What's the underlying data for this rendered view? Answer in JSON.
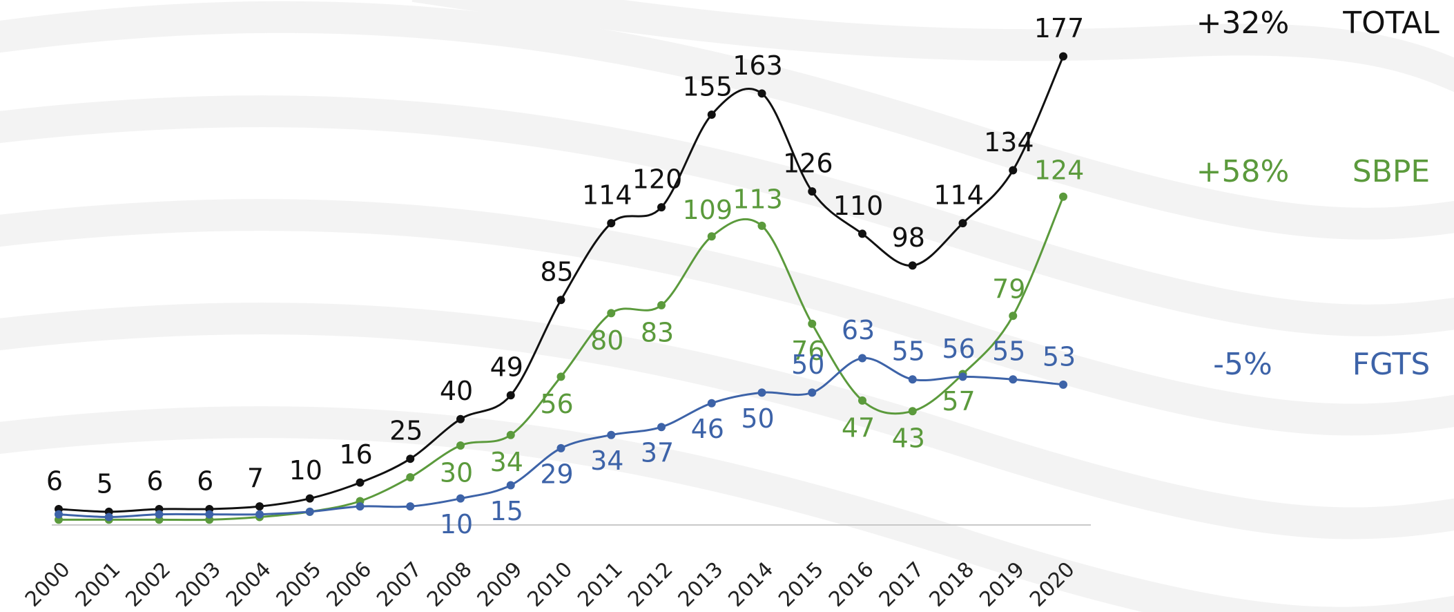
{
  "chart_data": {
    "type": "line",
    "categories": [
      "2000",
      "2001",
      "2002",
      "2003",
      "2004",
      "2005",
      "2006",
      "2007",
      "2008",
      "2009",
      "2010",
      "2011",
      "2012",
      "2013",
      "2014",
      "2015",
      "2016",
      "2017",
      "2018",
      "2019",
      "2020"
    ],
    "ylim": [
      0,
      185
    ],
    "series": [
      {
        "name": "TOTAL",
        "annotation": "+32%",
        "color": "#111111",
        "values": [
          6,
          5,
          6,
          6,
          7,
          10,
          16,
          25,
          40,
          49,
          85,
          114,
          120,
          155,
          163,
          126,
          110,
          98,
          114,
          134,
          177
        ],
        "value_labels": [
          "6",
          "5",
          "6",
          "6",
          "7",
          "10",
          "16",
          "25",
          "40",
          "49",
          "85",
          "114",
          "120",
          "155",
          "163",
          "126",
          "110",
          "98",
          "114",
          "134",
          "177"
        ]
      },
      {
        "name": "SBPE",
        "annotation": "+58%",
        "color": "#5b9a3c",
        "values": [
          2,
          2,
          2,
          2,
          3,
          5,
          9,
          18,
          30,
          34,
          56,
          80,
          83,
          109,
          113,
          76,
          47,
          43,
          57,
          79,
          124
        ],
        "value_labels": [
          null,
          null,
          null,
          null,
          null,
          null,
          null,
          null,
          "30",
          "34",
          "56",
          "80",
          "83",
          "109",
          "113",
          "76",
          "47",
          "43",
          "57",
          "79",
          "124"
        ]
      },
      {
        "name": "FGTS",
        "annotation": "-5%",
        "color": "#3d63a8",
        "values": [
          4,
          3,
          4,
          4,
          4,
          5,
          7,
          7,
          10,
          15,
          29,
          34,
          37,
          46,
          50,
          50,
          63,
          55,
          56,
          55,
          53
        ],
        "value_labels": [
          null,
          null,
          null,
          null,
          null,
          null,
          null,
          null,
          "10",
          "15",
          "29",
          "34",
          "37",
          "46",
          "50",
          "50",
          "63",
          "55",
          "56",
          "55",
          "53"
        ]
      }
    ]
  }
}
